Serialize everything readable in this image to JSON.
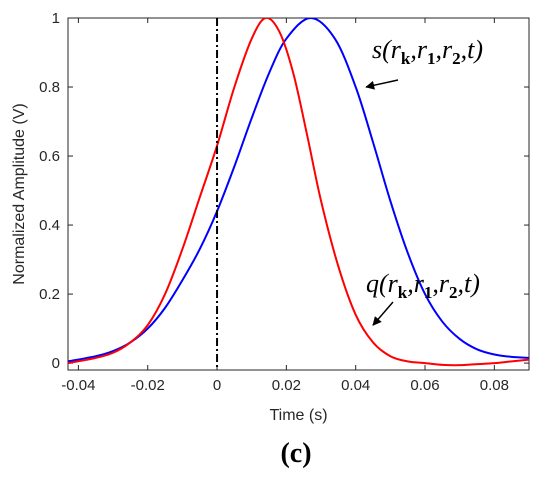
{
  "chart_data": {
    "type": "line",
    "xlabel": "Time (s)",
    "ylabel": "Normalized Amplitude (V)",
    "xlim": [
      -0.043,
      0.09
    ],
    "ylim": [
      -0.02,
      1.0
    ],
    "x_ticks": [
      -0.04,
      -0.02,
      0,
      0.02,
      0.04,
      0.06,
      0.08
    ],
    "x_tick_labels": [
      "-0.04",
      "-0.02",
      "0",
      "0.02",
      "0.04",
      "0.06",
      "0.08"
    ],
    "y_ticks": [
      0,
      0.2,
      0.4,
      0.6,
      0.8,
      1
    ],
    "y_tick_labels": [
      "0",
      "0.2",
      "0.4",
      "0.6",
      "0.8",
      "1"
    ],
    "panel_label": "(c)",
    "series": [
      {
        "color": "#ff0000",
        "x": [
          -0.043,
          -0.035,
          -0.03,
          -0.025,
          -0.02,
          -0.015,
          -0.01,
          -0.005,
          0,
          0.005,
          0.01,
          0.014,
          0.018,
          0.022,
          0.026,
          0.03,
          0.035,
          0.04,
          0.045,
          0.05,
          0.055,
          0.06,
          0.065,
          0.07,
          0.075,
          0.08,
          0.085,
          0.09
        ],
        "y": [
          0.0,
          0.015,
          0.03,
          0.06,
          0.11,
          0.2,
          0.33,
          0.48,
          0.63,
          0.8,
          0.94,
          1.0,
          0.96,
          0.84,
          0.66,
          0.47,
          0.28,
          0.14,
          0.06,
          0.02,
          0.005,
          0.0,
          -0.005,
          -0.006,
          -0.003,
          0.0,
          0.005,
          0.01
        ]
      },
      {
        "color": "#0000ff",
        "x": [
          -0.043,
          -0.035,
          -0.03,
          -0.025,
          -0.02,
          -0.015,
          -0.01,
          -0.005,
          0,
          0.005,
          0.01,
          0.015,
          0.02,
          0.027,
          0.034,
          0.04,
          0.045,
          0.05,
          0.055,
          0.06,
          0.065,
          0.07,
          0.075,
          0.08,
          0.085,
          0.09
        ],
        "y": [
          0.005,
          0.02,
          0.035,
          0.06,
          0.1,
          0.16,
          0.24,
          0.33,
          0.44,
          0.57,
          0.71,
          0.84,
          0.94,
          1.0,
          0.94,
          0.8,
          0.64,
          0.47,
          0.32,
          0.2,
          0.12,
          0.07,
          0.04,
          0.025,
          0.018,
          0.015
        ]
      }
    ],
    "vertical_line_x": 0,
    "annotations": [
      {
        "parts": [
          "s(r",
          "k",
          ",r",
          "1",
          ",r",
          "2",
          ",t)"
        ],
        "target": [
          0.043,
          0.8
        ]
      },
      {
        "parts": [
          "q(r",
          "k",
          ",r",
          "1",
          ",r",
          "2",
          ",t)"
        ],
        "target": [
          0.045,
          0.11
        ]
      }
    ]
  }
}
